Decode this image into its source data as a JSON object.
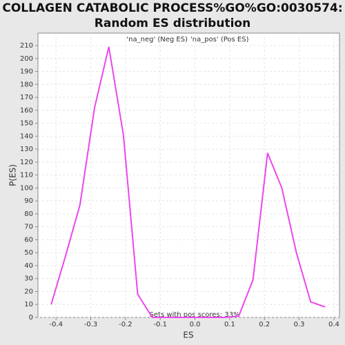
{
  "chart_data": {
    "type": "line",
    "title": "COLLAGEN CATABOLIC PROCESS%GO%GO:0030574:",
    "subtitle": "Random ES distribution",
    "x_label": "ES",
    "y_label": "P(ES)",
    "legend": [
      "'na_neg' (Neg ES)",
      "'na_pos' (Pos ES)"
    ],
    "legend_colors": [
      "#4444cc",
      "#cc4444"
    ],
    "annotation": "Sets with pos scores: 33%",
    "x": [
      -0.414,
      -0.372,
      -0.331,
      -0.289,
      -0.248,
      -0.206,
      -0.165,
      -0.123,
      -0.082,
      -0.04,
      0.001,
      0.043,
      0.084,
      0.126,
      0.167,
      0.209,
      0.25,
      0.292,
      0.333,
      0.375
    ],
    "series": [
      {
        "color": "#ee44ee",
        "values": [
          10,
          48,
          87,
          162,
          209,
          141,
          18,
          0,
          0,
          0,
          0,
          0,
          0,
          1,
          29,
          127,
          100,
          50,
          12,
          8
        ]
      }
    ],
    "xlim": [
      -0.452,
      0.416
    ],
    "ylim": [
      0,
      219.6
    ],
    "xticks": [
      -0.4,
      -0.3,
      -0.2,
      -0.1,
      {
        "value": 0,
        "label": "0.0"
      },
      0.1,
      0.2,
      0.3,
      0.4
    ],
    "yticks": [
      0,
      10,
      20,
      30,
      40,
      50,
      60,
      70,
      80,
      90,
      100,
      110,
      120,
      130,
      140,
      150,
      160,
      170,
      180,
      190,
      200,
      210
    ],
    "grid": true
  }
}
